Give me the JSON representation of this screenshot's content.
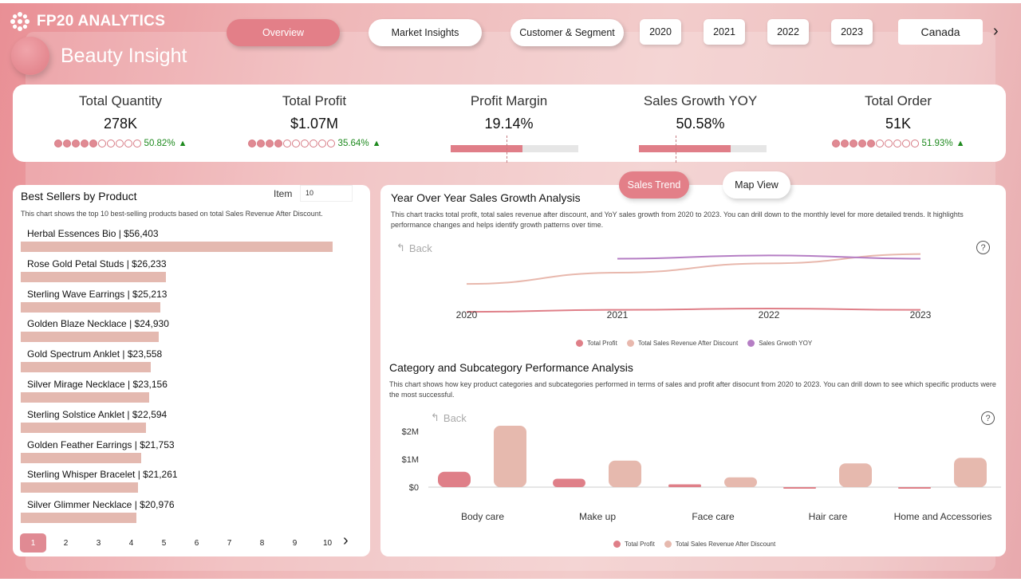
{
  "brand": {
    "name": "FP20 ANALYTICS",
    "title": "Beauty Insight"
  },
  "nav": {
    "overview": "Overview",
    "market": "Market Insights",
    "customer": "Customer & Segment"
  },
  "years": [
    "2020",
    "2021",
    "2022",
    "2023"
  ],
  "country": "Canada",
  "nav_arrow": "›",
  "kpis": {
    "quantity": {
      "label": "Total Quantity",
      "value": "278K",
      "change": "50.82%",
      "dots_on": 5
    },
    "profit": {
      "label": "Total Profit",
      "value": "$1.07M",
      "change": "35.64%",
      "dots_on": 4
    },
    "margin": {
      "label": "Profit Margin",
      "value": "19.14%",
      "fill": 0.56
    },
    "growth": {
      "label": "Sales Growth YOY",
      "value": "50.58%",
      "fill": 0.72
    },
    "orders": {
      "label": "Total Order",
      "value": "51K",
      "change": "51.93%",
      "dots_on": 5
    }
  },
  "up_arrow": "▲",
  "best_sellers": {
    "title": "Best Sellers by Product",
    "desc": "This chart shows the top 10 best-selling products based on total Sales Revenue After Discount.",
    "item_label": "Item",
    "item_value": "10",
    "items": [
      {
        "label": "Herbal Essences Bio | $56,403",
        "value": 56403
      },
      {
        "label": "Rose Gold Petal Studs | $26,233",
        "value": 26233
      },
      {
        "label": "Sterling Wave Earrings | $25,213",
        "value": 25213
      },
      {
        "label": "Golden Blaze Necklace | $24,930",
        "value": 24930
      },
      {
        "label": "Gold Spectrum Anklet | $23,558",
        "value": 23558
      },
      {
        "label": "Silver Mirage Necklace | $23,156",
        "value": 23156
      },
      {
        "label": "Sterling Solstice Anklet | $22,594",
        "value": 22594
      },
      {
        "label": "Golden Feather Earrings | $21,753",
        "value": 21753
      },
      {
        "label": "Sterling Whisper Bracelet | $21,261",
        "value": 21261
      },
      {
        "label": "Silver Glimmer Necklace | $20,976",
        "value": 20976
      }
    ],
    "pages": [
      "1",
      "2",
      "3",
      "4",
      "5",
      "6",
      "7",
      "8",
      "9",
      "10"
    ],
    "next": "›"
  },
  "toggles": {
    "sales_trend": "Sales Trend",
    "map_view": "Map View"
  },
  "yoy": {
    "title": "Year Over Year Sales Growth Analysis",
    "desc": "This chart tracks total profit, total sales revenue after discount, and YoY sales growth from 2020 to 2023. You can drill down to the monthly level for more detailed trends. It highlights performance changes and helps identify growth patterns over time.",
    "back": "Back",
    "help": "?"
  },
  "category": {
    "title": "Category and Subcategory Performance Analysis",
    "desc": "This chart shows how key product categories and subcategories performed in terms of sales and profit after disocunt from 2020 to 2023. You can drill down to see which specific products were the most successful.",
    "back": "Back",
    "help": "?"
  },
  "chart_data": [
    {
      "type": "line",
      "x": [
        "2020",
        "2021",
        "2022",
        "2023"
      ],
      "series": [
        {
          "name": "Total Profit",
          "values": [
            0.13,
            0.16,
            0.18,
            0.16
          ],
          "color": "#df7f88"
        },
        {
          "name": "Total Sales Revenue After Discount",
          "values": [
            0.55,
            0.72,
            0.86,
            1.0
          ],
          "color": "#e8b8ad"
        },
        {
          "name": "Sales Grwoth YOY",
          "values": [
            null,
            0.93,
            0.98,
            0.93
          ],
          "color": "#b57ec4"
        }
      ],
      "ylim": [
        0,
        1.2
      ],
      "legend": "bottom"
    },
    {
      "type": "bar",
      "categories": [
        "Body care",
        "Make up",
        "Face care",
        "Hair care",
        "Home and Accessories"
      ],
      "series": [
        {
          "name": "Total Profit",
          "values": [
            0.55,
            0.3,
            0.1,
            -0.03,
            -0.05
          ],
          "color": "#df7f88"
        },
        {
          "name": "Total Sales Revenue After Discount",
          "values": [
            2.2,
            0.95,
            0.35,
            0.85,
            1.05
          ],
          "color": "#e6b9ae"
        }
      ],
      "yticks": [
        "$2M",
        "$1M",
        "$0"
      ],
      "ylim": [
        -0.2,
        2.3
      ],
      "legend": "bottom"
    }
  ]
}
